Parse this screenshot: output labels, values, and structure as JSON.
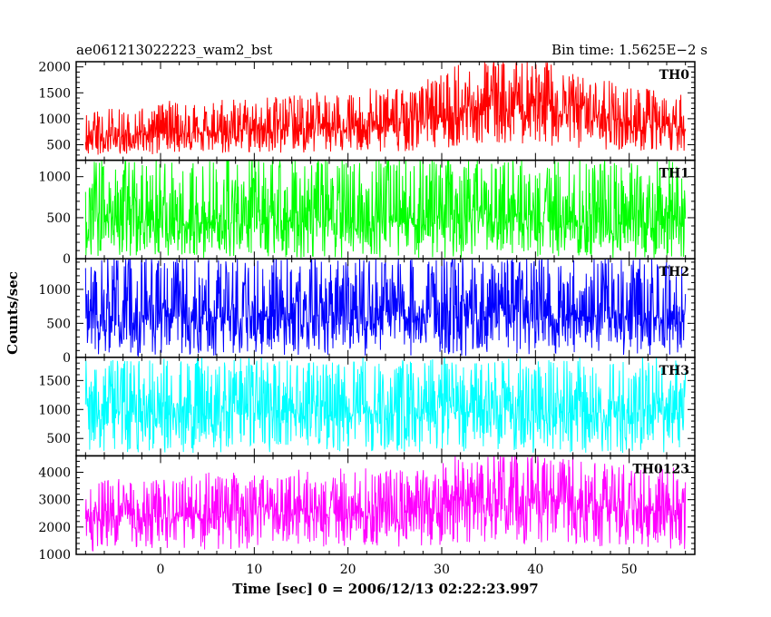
{
  "header": {
    "left_title": "ae061213022223_wam2_bst",
    "right_title": "Bin time: 1.5625E−2 s"
  },
  "chart_data": {
    "type": "line",
    "x_axis": {
      "label": "Time [sec] 0 = 2006/12/13 02:22:23.997",
      "range": [
        -9,
        57
      ],
      "ticks": [
        0,
        10,
        20,
        30,
        40,
        50
      ]
    },
    "y_axis": {
      "label": "Counts/sec"
    },
    "data_x_range": [
      -8,
      56
    ],
    "panels": [
      {
        "name": "TH0",
        "color": "#ff0000",
        "ylim": [
          200,
          2100
        ],
        "yticks": [
          500,
          1000,
          1500,
          2000
        ],
        "profile": [
          {
            "t": -8,
            "low": 250,
            "mid": 620,
            "high": 1150
          },
          {
            "t": 0,
            "low": 300,
            "mid": 700,
            "high": 1300
          },
          {
            "t": 10,
            "low": 330,
            "mid": 780,
            "high": 1400
          },
          {
            "t": 20,
            "low": 350,
            "mid": 830,
            "high": 1500
          },
          {
            "t": 28,
            "low": 380,
            "mid": 950,
            "high": 1650
          },
          {
            "t": 33,
            "low": 500,
            "mid": 1250,
            "high": 2100
          },
          {
            "t": 40,
            "low": 500,
            "mid": 1250,
            "high": 2100
          },
          {
            "t": 46,
            "low": 420,
            "mid": 1050,
            "high": 1800
          },
          {
            "t": 56,
            "low": 320,
            "mid": 800,
            "high": 1450
          }
        ]
      },
      {
        "name": "TH1",
        "color": "#00ff00",
        "ylim": [
          0,
          1200
        ],
        "yticks": [
          0,
          500,
          1000
        ],
        "profile": [
          {
            "t": -8,
            "low": 10,
            "mid": 450,
            "high": 1200
          },
          {
            "t": 56,
            "low": 10,
            "mid": 450,
            "high": 1200
          }
        ]
      },
      {
        "name": "TH2",
        "color": "#0000ff",
        "ylim": [
          0,
          1450
        ],
        "yticks": [
          0,
          500,
          1000
        ],
        "profile": [
          {
            "t": -8,
            "low": 20,
            "mid": 600,
            "high": 1450
          },
          {
            "t": 56,
            "low": 20,
            "mid": 600,
            "high": 1450
          }
        ]
      },
      {
        "name": "TH3",
        "color": "#00ffff",
        "ylim": [
          200,
          1900
        ],
        "yticks": [
          500,
          1000,
          1500
        ],
        "profile": [
          {
            "t": -8,
            "low": 250,
            "mid": 950,
            "high": 1850
          },
          {
            "t": 56,
            "low": 250,
            "mid": 950,
            "high": 1850
          }
        ]
      },
      {
        "name": "TH0123",
        "color": "#ff00ff",
        "ylim": [
          1000,
          4600
        ],
        "yticks": [
          1000,
          2000,
          3000,
          4000
        ],
        "profile": [
          {
            "t": -8,
            "low": 1100,
            "mid": 2300,
            "high": 3700
          },
          {
            "t": 10,
            "low": 1200,
            "mid": 2450,
            "high": 3900
          },
          {
            "t": 20,
            "low": 1250,
            "mid": 2500,
            "high": 4000
          },
          {
            "t": 28,
            "low": 1300,
            "mid": 2650,
            "high": 4200
          },
          {
            "t": 33,
            "low": 1400,
            "mid": 3000,
            "high": 4600
          },
          {
            "t": 40,
            "low": 1400,
            "mid": 3000,
            "high": 4600
          },
          {
            "t": 46,
            "low": 1300,
            "mid": 2800,
            "high": 4400
          },
          {
            "t": 56,
            "low": 1150,
            "mid": 2500,
            "high": 4000
          }
        ]
      }
    ]
  }
}
